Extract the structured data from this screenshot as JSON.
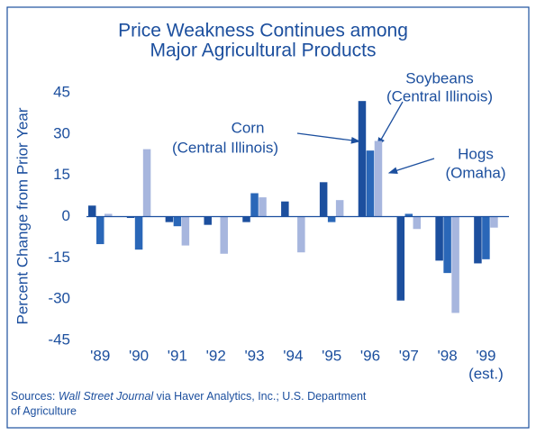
{
  "chart_data": {
    "type": "bar",
    "title": [
      "Price Weakness Continues among",
      "Major Agricultural Products"
    ],
    "y_label": "Percent Change from Prior Year",
    "categories": [
      "'89",
      "'90",
      "'91",
      "'92",
      "'93",
      "'94",
      "'95",
      "'96",
      "'97",
      "'98",
      "'99"
    ],
    "last_category_note": "(est.)",
    "series": [
      {
        "name": "Corn",
        "note": "(Central Illinois)",
        "color": "#1c4f9e",
        "values": [
          4,
          -0.5,
          -2,
          -3,
          -2,
          5.5,
          12.5,
          42,
          -30.5,
          -16,
          -17
        ]
      },
      {
        "name": "Soybeans",
        "note": "(Central Illinois)",
        "color": "#2a67b8",
        "values": [
          -10,
          -12,
          -3.5,
          0,
          8.5,
          0,
          -2,
          24,
          1,
          -20.5,
          -15.5
        ]
      },
      {
        "name": "Hogs",
        "note": "(Omaha)",
        "color": "#a7b6de",
        "values": [
          1,
          24.5,
          -10.5,
          -13.5,
          7,
          -13,
          6,
          27.5,
          -4.5,
          -35,
          -4
        ]
      }
    ],
    "ylim": [
      -45,
      45
    ],
    "yticks": [
      -45,
      -30,
      -15,
      0,
      15,
      30,
      45
    ],
    "source": {
      "prefix": "Sources: ",
      "italic": "Wall Street Journal",
      "suffix": " via Haver Analytics, Inc.; U.S. Department",
      "line2": "of  Agriculture"
    }
  }
}
